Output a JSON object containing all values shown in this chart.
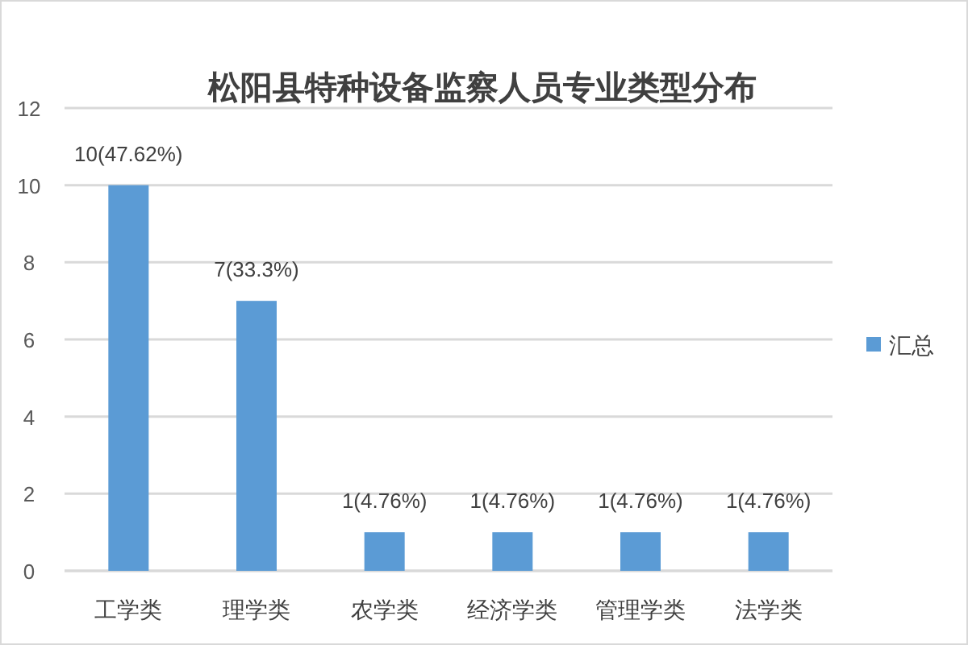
{
  "chart_data": {
    "type": "bar",
    "title": "松阳县特种设备监察人员专业类型分布",
    "categories": [
      "工学类",
      "理学类",
      "农学类",
      "经济学类",
      "管理学类",
      "法学类"
    ],
    "series": [
      {
        "name": "汇总",
        "color": "#5b9bd5",
        "values": [
          10,
          7,
          1,
          1,
          1,
          1
        ],
        "value_labels": [
          "10(47.62%)",
          "7(33.3%)",
          "1(4.76%)",
          "1(4.76%)",
          "1(4.76%)",
          "1(4.76%)"
        ]
      }
    ],
    "ylim": [
      0,
      12
    ],
    "yticks": [
      0,
      2,
      4,
      6,
      8,
      10,
      12
    ],
    "grid": "y",
    "legend": "right"
  }
}
